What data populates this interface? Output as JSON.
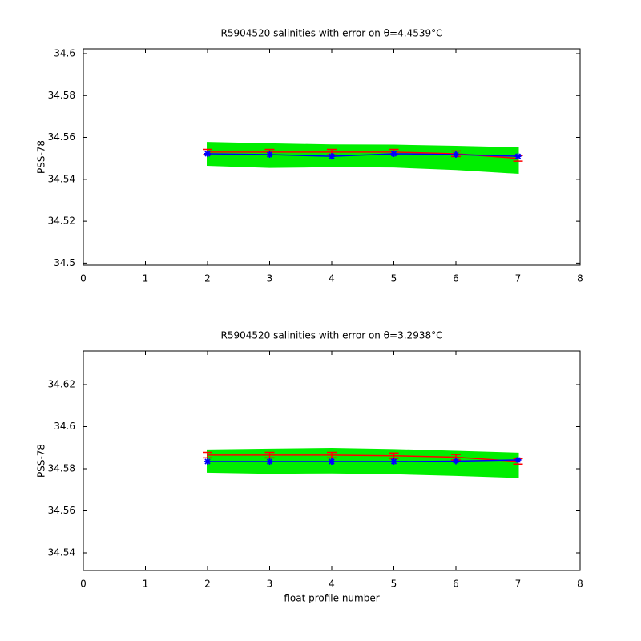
{
  "chart_data": [
    {
      "type": "line",
      "title": "R5904520 salinities with error on θ=4.4539°C",
      "ylabel": "PSS-78",
      "xlim": [
        0,
        8
      ],
      "xticks": [
        0,
        1,
        2,
        3,
        4,
        5,
        6,
        7,
        8
      ],
      "ylim": [
        34.499,
        34.6023
      ],
      "yticks": [
        34.5,
        34.52,
        34.54,
        34.56,
        34.58,
        34.6
      ],
      "x": [
        2,
        3,
        4,
        5,
        6,
        7
      ],
      "band": {
        "color": "#00ee00",
        "upper": [
          34.5575,
          34.5568,
          34.5563,
          34.5562,
          34.5556,
          34.5549
        ],
        "lower": [
          34.5468,
          34.5458,
          34.5462,
          34.546,
          34.5448,
          34.543
        ]
      },
      "series": [
        {
          "color": "#ff0000",
          "values": [
            34.553,
            34.553,
            34.553,
            34.553,
            34.5522,
            34.55
          ],
          "errors": [
            0.0013,
            0.0013,
            0.0013,
            0.0013,
            0.0013,
            0.0013
          ]
        },
        {
          "color": "#0000ff",
          "values": [
            34.5522,
            34.5518,
            34.551,
            34.5522,
            34.5518,
            34.551
          ]
        }
      ]
    },
    {
      "type": "line",
      "title": "R5904520 salinities with error on θ=3.2938°C",
      "ylabel": "PSS-78",
      "xlabel": "float profile number",
      "xlim": [
        0,
        8
      ],
      "xticks": [
        0,
        1,
        2,
        3,
        4,
        5,
        6,
        7,
        8
      ],
      "ylim": [
        34.5316,
        34.636
      ],
      "yticks": [
        34.54,
        34.56,
        34.58,
        34.6,
        34.62
      ],
      "x": [
        2,
        3,
        4,
        5,
        6,
        7
      ],
      "band": {
        "color": "#00ee00",
        "upper": [
          34.5888,
          34.5892,
          34.5895,
          34.589,
          34.5882,
          34.5873
        ],
        "lower": [
          34.5785,
          34.578,
          34.5782,
          34.5778,
          34.577,
          34.576
        ]
      },
      "series": [
        {
          "color": "#ff0000",
          "values": [
            34.5865,
            34.5865,
            34.5865,
            34.5862,
            34.5855,
            34.5835
          ],
          "errors": [
            0.0013,
            0.0013,
            0.0013,
            0.0013,
            0.0013,
            0.0013
          ]
        },
        {
          "color": "#0000ff",
          "values": [
            34.5834,
            34.5834,
            34.5834,
            34.5834,
            34.5836,
            34.5842
          ]
        }
      ]
    }
  ]
}
